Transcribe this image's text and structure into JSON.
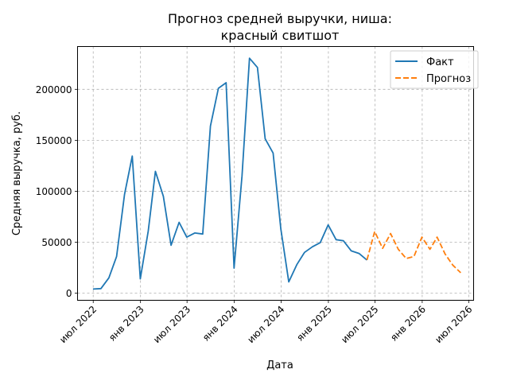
{
  "chart_data": {
    "type": "line",
    "title_line1": "Прогноз средней выручки, ниша:",
    "title_line2": "красный свитшот",
    "xlabel": "Дата",
    "ylabel": "Средняя выручка, руб.",
    "ylim": [
      -7000,
      242000
    ],
    "xlim": [
      "2022-05-01",
      "2026-07-20"
    ],
    "grid": true,
    "legend_position": "upper right",
    "x_ticks": [
      {
        "date": "2022-07-01",
        "label": "июл 2022"
      },
      {
        "date": "2023-01-01",
        "label": "янв 2023"
      },
      {
        "date": "2023-07-01",
        "label": "июл 2023"
      },
      {
        "date": "2024-01-01",
        "label": "янв 2024"
      },
      {
        "date": "2024-07-01",
        "label": "июл 2024"
      },
      {
        "date": "2025-01-01",
        "label": "янв 2025"
      },
      {
        "date": "2025-07-01",
        "label": "июл 2025"
      },
      {
        "date": "2026-01-01",
        "label": "янв 2026"
      },
      {
        "date": "2026-07-01",
        "label": "июл 2026"
      }
    ],
    "y_ticks": [
      0,
      50000,
      100000,
      150000,
      200000
    ],
    "y_tick_labels": [
      "0",
      "50000",
      "100000",
      "150000",
      "200000"
    ],
    "series": [
      {
        "name": "Факт",
        "color": "#1f77b4",
        "style": "solid",
        "points": [
          [
            "2022-06-30",
            4000
          ],
          [
            "2022-07-31",
            4500
          ],
          [
            "2022-08-31",
            15000
          ],
          [
            "2022-09-30",
            36000
          ],
          [
            "2022-10-31",
            97000
          ],
          [
            "2022-11-30",
            134500
          ],
          [
            "2022-12-31",
            14000
          ],
          [
            "2023-01-31",
            61000
          ],
          [
            "2023-02-28",
            119500
          ],
          [
            "2023-03-31",
            95000
          ],
          [
            "2023-04-30",
            47000
          ],
          [
            "2023-05-31",
            69500
          ],
          [
            "2023-06-30",
            55000
          ],
          [
            "2023-07-31",
            59000
          ],
          [
            "2023-08-31",
            58000
          ],
          [
            "2023-09-30",
            164000
          ],
          [
            "2023-10-31",
            201000
          ],
          [
            "2023-11-30",
            206500
          ],
          [
            "2023-12-31",
            24500
          ],
          [
            "2024-01-31",
            115000
          ],
          [
            "2024-02-29",
            230500
          ],
          [
            "2024-03-31",
            221500
          ],
          [
            "2024-04-30",
            151500
          ],
          [
            "2024-05-31",
            137500
          ],
          [
            "2024-06-30",
            63000
          ],
          [
            "2024-07-31",
            11000
          ],
          [
            "2024-08-31",
            28000
          ],
          [
            "2024-09-30",
            40000
          ],
          [
            "2024-10-31",
            45500
          ],
          [
            "2024-11-30",
            49500
          ],
          [
            "2024-12-31",
            67000
          ],
          [
            "2025-01-31",
            52500
          ],
          [
            "2025-02-28",
            51500
          ],
          [
            "2025-03-31",
            41500
          ],
          [
            "2025-04-30",
            39000
          ],
          [
            "2025-05-31",
            32500
          ]
        ]
      },
      {
        "name": "Прогноз",
        "color": "#ff7f0e",
        "style": "dashed",
        "points": [
          [
            "2025-05-31",
            32500
          ],
          [
            "2025-06-30",
            60500
          ],
          [
            "2025-07-31",
            44000
          ],
          [
            "2025-08-31",
            58500
          ],
          [
            "2025-09-30",
            43000
          ],
          [
            "2025-10-31",
            34000
          ],
          [
            "2025-11-30",
            36000
          ],
          [
            "2025-12-31",
            55000
          ],
          [
            "2026-01-31",
            43000
          ],
          [
            "2026-02-28",
            55000
          ],
          [
            "2026-03-31",
            38500
          ],
          [
            "2026-04-30",
            27500
          ],
          [
            "2026-05-31",
            20000
          ]
        ]
      }
    ]
  }
}
